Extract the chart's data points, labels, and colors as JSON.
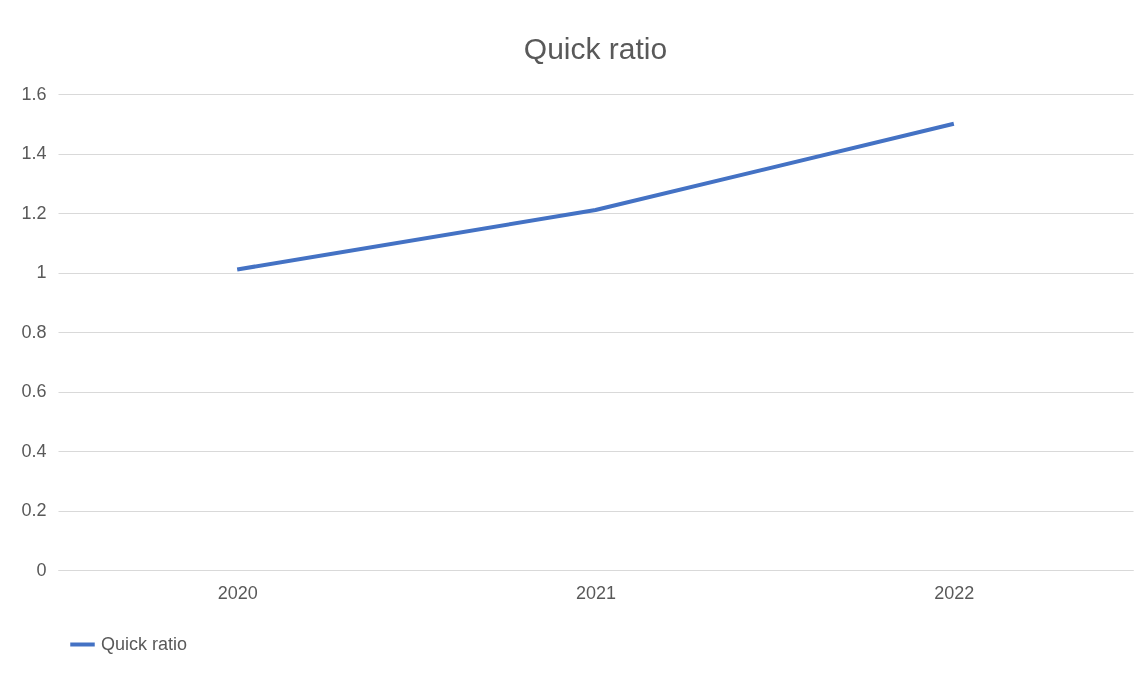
{
  "chart_data": {
    "type": "line",
    "title": "Quick ratio",
    "categories": [
      "2020",
      "2021",
      "2022"
    ],
    "series": [
      {
        "name": "Quick ratio",
        "color": "#4472c4",
        "values": [
          1.01,
          1.21,
          1.5
        ]
      }
    ],
    "ylim": [
      0,
      1.6
    ],
    "yticks": [
      0,
      0.2,
      0.4,
      0.6,
      0.8,
      1,
      1.2,
      1.4,
      1.6
    ],
    "grid": "y",
    "legend": "bottom",
    "marker": "none",
    "line_style": "solid"
  }
}
